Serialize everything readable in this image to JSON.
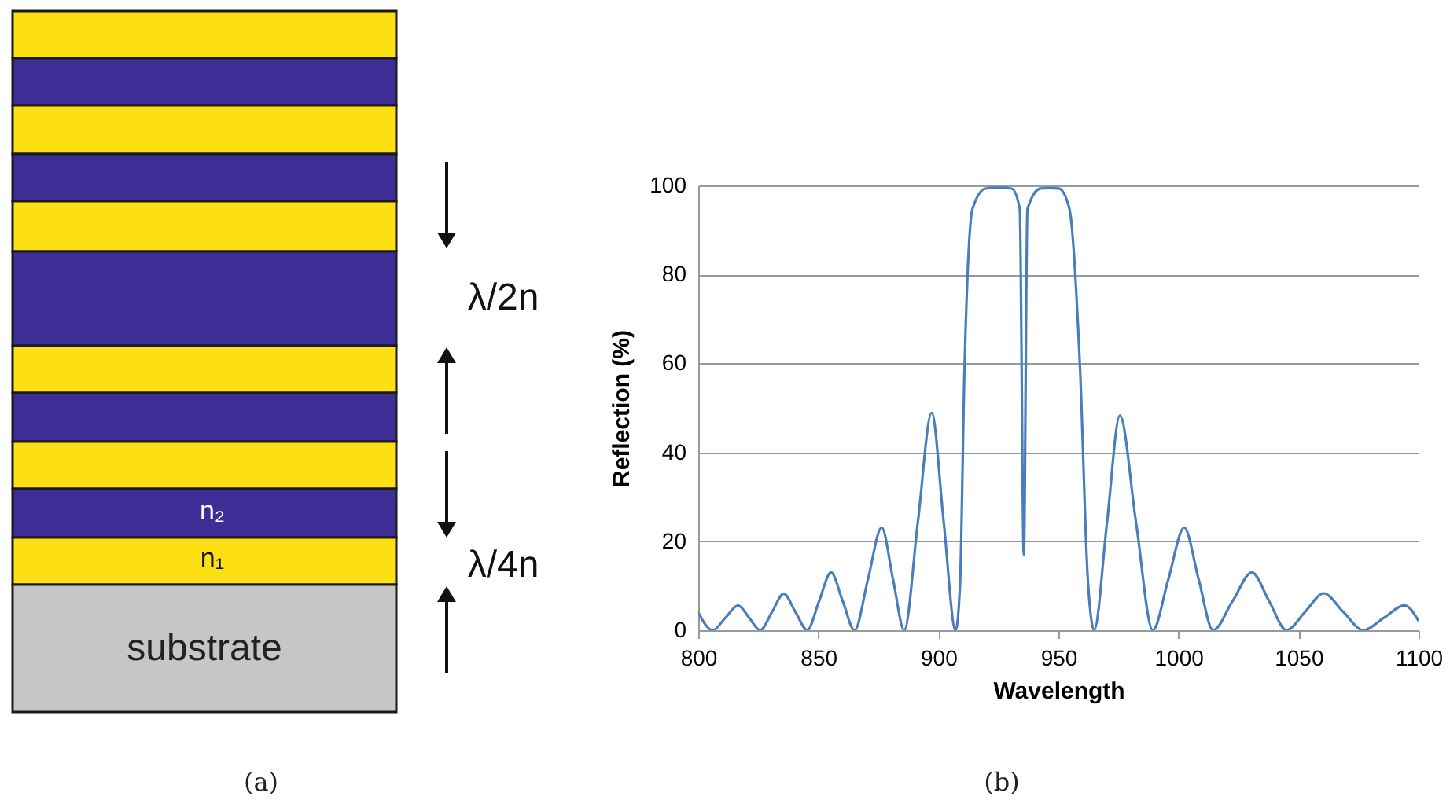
{
  "chart_data": [
    {
      "type": "other",
      "annotations": [
        "n₂",
        "n₁",
        "substrate",
        "λ/2n",
        "λ/4n",
        "(a)"
      ]
    },
    {
      "type": "line",
      "xlabel": "Wavelength",
      "ylabel": "Reflection (%)",
      "annotations": [
        "(b)"
      ],
      "x": [
        800,
        806,
        811.3,
        816.6,
        821.2,
        825.8,
        830.7,
        835.6,
        840.5,
        845.4,
        850.3,
        855.3,
        860.2,
        865.1,
        870.7,
        876.4,
        881.1,
        885.8,
        891.5,
        897.2,
        902.2,
        907.2,
        909,
        910.9,
        914.2,
        919.6,
        925,
        930.6,
        933.9,
        935.6,
        937.1,
        942.5,
        946,
        950.2,
        954.6,
        959,
        962.2,
        964.9,
        970.2,
        975.6,
        982.4,
        989.3,
        995.8,
        1002.4,
        1008.4,
        1014.4,
        1022.5,
        1030.6,
        1037.8,
        1045,
        1052.7,
        1060.5,
        1068.7,
        1077,
        1085.6,
        1094.2,
        1100
      ],
      "series": [
        {
          "color": "#4a7ebb",
          "values": [
            4,
            0,
            2.8,
            5.6,
            2.8,
            0,
            4.1,
            8.2,
            4.1,
            0,
            6.5,
            13,
            6.5,
            0,
            11.5,
            23.1,
            11.5,
            0,
            24.5,
            48.9,
            24.5,
            0,
            10,
            59,
            94.7,
            99.3,
            99.5,
            99.3,
            94.7,
            17,
            94.7,
            99.3,
            99.4,
            99.3,
            94.7,
            59,
            12,
            0,
            24,
            48.3,
            24,
            0,
            11.5,
            23.1,
            11.5,
            0,
            6.5,
            13,
            6.5,
            0,
            4.1,
            8.3,
            4.1,
            0,
            2.8,
            5.6,
            2.1
          ]
        }
      ],
      "xlim": [
        800,
        1100
      ],
      "xticks": [
        800,
        850,
        900,
        950,
        1000,
        1050,
        1100
      ],
      "ylim": [
        0,
        100
      ],
      "yticks": [
        0,
        20,
        40,
        60,
        80,
        100
      ],
      "grid": "y"
    }
  ]
}
